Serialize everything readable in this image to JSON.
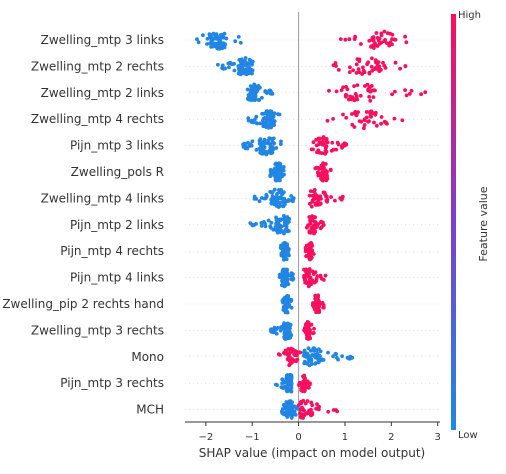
{
  "chart_data": {
    "type": "scatter",
    "subtype": "beeswarm",
    "xlabel": "SHAP value (impact on model output)",
    "xlim": [
      -2.45,
      3.05
    ],
    "xticks": [
      -2,
      -1,
      0,
      1,
      2,
      3
    ],
    "xtick_labels": [
      "−2",
      "−1",
      "0",
      "1",
      "2",
      "3"
    ],
    "colorbar": {
      "title": "Feature value",
      "high_label": "High",
      "low_label": "Low",
      "low_color": "#1e88e5",
      "high_color": "#ff0d57"
    },
    "features": [
      {
        "name": "Zwelling_mtp 3 links",
        "low_range": [
          -2.2,
          -1.2
        ],
        "low_center": -1.75,
        "high_range": [
          0.9,
          2.35
        ],
        "high_center": 1.8
      },
      {
        "name": "Zwelling_mtp 2 rechts",
        "low_range": [
          -1.75,
          -0.9
        ],
        "low_center": -1.15,
        "high_range": [
          0.75,
          2.45
        ],
        "high_center": 1.5
      },
      {
        "name": "Zwelling_mtp 2 links",
        "low_range": [
          -1.1,
          -0.55
        ],
        "low_center": -0.95,
        "high_range": [
          0.65,
          2.85
        ],
        "high_center": 1.3
      },
      {
        "name": "Zwelling_mtp 4 rechts",
        "low_range": [
          -1.1,
          -0.4
        ],
        "low_center": -0.65,
        "high_range": [
          0.6,
          2.25
        ],
        "high_center": 1.4
      },
      {
        "name": "Pijn_mtp 3 links",
        "low_range": [
          -1.2,
          -0.35
        ],
        "low_center": -0.7,
        "high_range": [
          0.25,
          1.05
        ],
        "high_center": 0.5
      },
      {
        "name": "Zwelling_pols R",
        "low_range": [
          -0.65,
          -0.3
        ],
        "low_center": -0.45,
        "high_range": [
          0.35,
          0.75
        ],
        "high_center": 0.55
      },
      {
        "name": "Zwelling_mtp 4 links",
        "low_range": [
          -1.0,
          -0.1
        ],
        "low_center": -0.45,
        "high_range": [
          0.2,
          1.0
        ],
        "high_center": 0.35
      },
      {
        "name": "Pijn_mtp 2 links",
        "low_range": [
          -1.05,
          -0.2
        ],
        "low_center": -0.35,
        "high_range": [
          0.15,
          0.55
        ],
        "high_center": 0.3
      },
      {
        "name": "Pijn_mtp 4 rechts",
        "low_range": [
          -0.4,
          -0.2
        ],
        "low_center": -0.3,
        "high_range": [
          0.15,
          0.35
        ],
        "high_center": 0.25
      },
      {
        "name": "Pijn_mtp 4 links",
        "low_range": [
          -0.45,
          -0.1
        ],
        "low_center": -0.3,
        "high_range": [
          0.1,
          0.6
        ],
        "high_center": 0.2
      },
      {
        "name": "Zwelling_pip 2 rechts hand",
        "low_range": [
          -0.35,
          -0.15
        ],
        "low_center": -0.25,
        "high_range": [
          0.25,
          0.55
        ],
        "high_center": 0.4
      },
      {
        "name": "Zwelling_mtp 3 rechts",
        "low_range": [
          -0.6,
          -0.15
        ],
        "low_center": -0.25,
        "high_range": [
          0.1,
          0.35
        ],
        "high_center": 0.2
      },
      {
        "name": "Mono",
        "low_range": [
          0.1,
          1.25
        ],
        "low_center": 0.3,
        "high_range": [
          -0.45,
          0.05
        ],
        "high_center": -0.15
      },
      {
        "name": "Pijn_mtp 3 rechts",
        "low_range": [
          -0.55,
          -0.15
        ],
        "low_center": -0.2,
        "high_range": [
          0.0,
          0.25
        ],
        "high_center": 0.1
      },
      {
        "name": "MCH",
        "low_range": [
          -0.4,
          0.0
        ],
        "low_center": -0.2,
        "high_range": [
          0.0,
          0.85
        ],
        "high_center": 0.15
      }
    ]
  }
}
